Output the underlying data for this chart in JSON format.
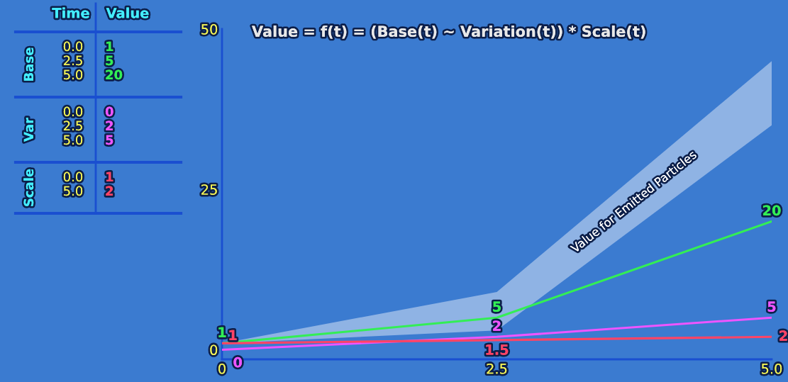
{
  "chart_data": [
    {
      "type": "other",
      "annotations": [
        "Time",
        "Value",
        "Base",
        "0.0",
        "1",
        "2.5",
        "5",
        "5.0",
        "20",
        "Var",
        "0.0",
        "0",
        "2.5",
        "2",
        "5.0",
        "5",
        "Scale",
        "0.0",
        "1",
        "5.0",
        "2"
      ]
    },
    {
      "type": "line",
      "title": "Value = f(t) = (Base(t) ~ Variation(t)) * Scale(t)",
      "xlim": [
        0,
        5
      ],
      "xticks": [
        0,
        2.5,
        {
          "value": 5,
          "label": "5.0"
        }
      ],
      "ylim": [
        -1.5,
        50
      ],
      "yticks": [
        0,
        25,
        50
      ],
      "grid": false,
      "legend": false,
      "series": [
        {
          "name": "Value for Emitted Particles",
          "type": "area",
          "x": [
            0,
            2.5,
            5
          ],
          "values": [
            null,
            null,
            null
          ],
          "lower": [
            1,
            3,
            35
          ],
          "upper": [
            1,
            9,
            45
          ]
        },
        {
          "type": "line",
          "color": "#33ee55",
          "x": [
            0,
            2.5,
            5
          ],
          "values": [
            1,
            5,
            20
          ],
          "value_labels": [
            "1",
            "5",
            "20"
          ]
        },
        {
          "type": "line",
          "color": "#ee55ff",
          "x": [
            0,
            2.5,
            5
          ],
          "values": [
            0,
            2,
            5
          ],
          "value_labels": [
            "0",
            "2",
            "5"
          ]
        },
        {
          "type": "line",
          "color": "#ff4466",
          "x": [
            0,
            2.5,
            5
          ],
          "values": [
            1,
            1.5,
            2
          ],
          "value_labels": [
            "1",
            "1.5",
            "2"
          ]
        }
      ]
    }
  ]
}
